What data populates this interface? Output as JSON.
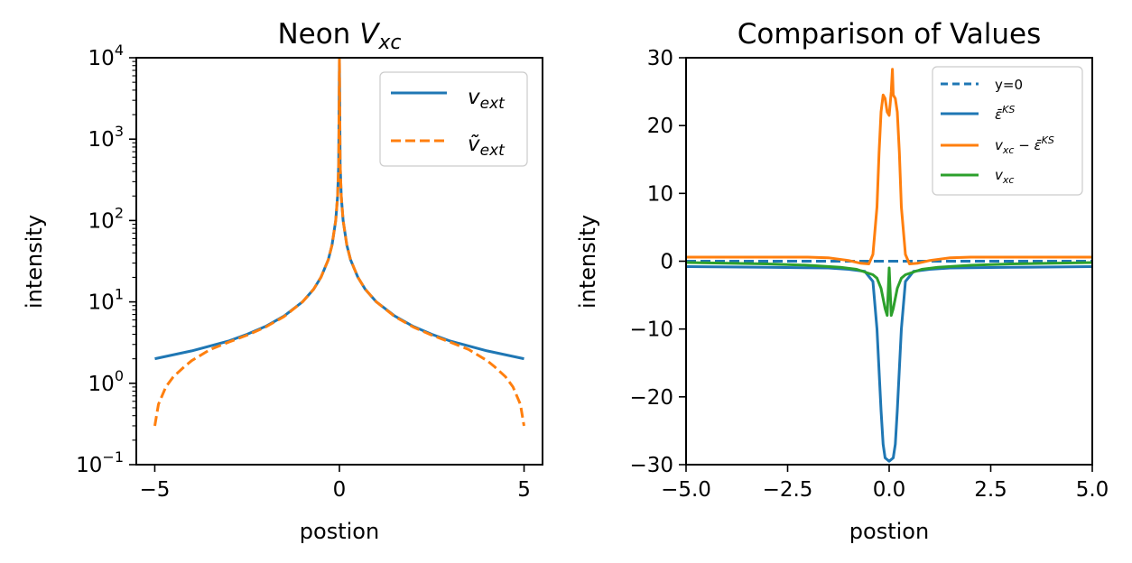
{
  "chart_data": [
    {
      "type": "line",
      "title": "Neon V_xc",
      "title_parts": {
        "text": "Neon ",
        "math": "V",
        "sub": "xc"
      },
      "xlabel": "postion",
      "ylabel": "intensity",
      "xlim": [
        -5.5,
        5.5
      ],
      "ylim": [
        0.1,
        10000
      ],
      "yscale": "log",
      "x_ticks": [
        -5,
        0,
        5
      ],
      "x_tick_labels": [
        "−5",
        "0",
        "5"
      ],
      "y_tick_base": "10",
      "y_tick_exponents": [
        "−1",
        "0",
        "1",
        "2",
        "3",
        "4"
      ],
      "grid": false,
      "legend_position": "upper right",
      "series": [
        {
          "name": "v_ext",
          "legend_math": "v",
          "legend_sub": "ext",
          "color": "#1f77b4",
          "style": "solid",
          "x": [
            -5,
            -4,
            -3,
            -2.5,
            -2,
            -1.5,
            -1,
            -0.7,
            -0.5,
            -0.3,
            -0.2,
            -0.1,
            -0.05,
            -0.02,
            0,
            0.02,
            0.05,
            0.1,
            0.2,
            0.3,
            0.5,
            0.7,
            1,
            1.5,
            2,
            2.5,
            3,
            4,
            5
          ],
          "y": [
            2,
            2.5,
            3.3,
            4,
            5,
            6.7,
            10,
            14.3,
            20,
            33,
            50,
            100,
            200,
            500,
            10000,
            500,
            200,
            100,
            50,
            33,
            20,
            14.3,
            10,
            6.7,
            5,
            4,
            3.3,
            2.5,
            2
          ]
        },
        {
          "name": "ṽ_ext",
          "legend_math": "ṽ",
          "legend_sub": "ext",
          "color": "#ff7f0e",
          "style": "dashed",
          "x": [
            -5,
            -4.9,
            -4.7,
            -4.5,
            -4.2,
            -4,
            -3.5,
            -3,
            -2.5,
            -2,
            -1.5,
            -1,
            -0.7,
            -0.5,
            -0.3,
            -0.2,
            -0.1,
            -0.05,
            -0.02,
            0,
            0.02,
            0.05,
            0.1,
            0.2,
            0.3,
            0.5,
            0.7,
            1,
            1.5,
            2,
            2.5,
            3,
            3.5,
            4,
            4.2,
            4.5,
            4.7,
            4.9,
            5
          ],
          "y": [
            0.3,
            0.55,
            0.9,
            1.2,
            1.6,
            1.9,
            2.6,
            3.2,
            3.9,
            4.9,
            6.6,
            10,
            14.3,
            20,
            33,
            50,
            100,
            200,
            500,
            10000,
            500,
            200,
            100,
            50,
            33,
            20,
            14.3,
            10,
            6.6,
            4.9,
            3.9,
            3.2,
            2.6,
            1.9,
            1.6,
            1.2,
            0.9,
            0.55,
            0.3
          ]
        }
      ]
    },
    {
      "type": "line",
      "title": "Comparison of Values",
      "xlabel": "postion",
      "ylabel": "intensity",
      "xlim": [
        -5.0,
        5.0
      ],
      "ylim": [
        -30,
        30
      ],
      "x_ticks": [
        -5,
        -2.5,
        0,
        2.5,
        5
      ],
      "x_tick_labels": [
        "−5.0",
        "−2.5",
        "0.0",
        "2.5",
        "5.0"
      ],
      "y_ticks": [
        -30,
        -20,
        -10,
        0,
        10,
        20,
        30
      ],
      "y_tick_labels": [
        "−30",
        "−20",
        "−10",
        "0",
        "10",
        "20",
        "30"
      ],
      "grid": false,
      "legend_position": "upper right",
      "series": [
        {
          "name": "y=0",
          "legend_plain": "y=0",
          "color": "#1f77b4",
          "style": "dashed",
          "x": [
            -5,
            5
          ],
          "y": [
            0,
            0
          ]
        },
        {
          "name": "ε̄^KS",
          "legend_math": "ε̄",
          "legend_sup": "KS",
          "color": "#1f77b4",
          "style": "solid",
          "x": [
            -5,
            -3,
            -1.5,
            -1,
            -0.6,
            -0.4,
            -0.3,
            -0.2,
            -0.15,
            -0.1,
            0,
            0.1,
            0.15,
            0.2,
            0.3,
            0.4,
            0.6,
            1,
            1.5,
            3,
            5
          ],
          "y": [
            -0.8,
            -0.9,
            -1.0,
            -1.2,
            -1.5,
            -3,
            -10,
            -22,
            -27,
            -29,
            -29.5,
            -29,
            -27,
            -22,
            -10,
            -3,
            -1.5,
            -1.2,
            -1.0,
            -0.9,
            -0.8
          ]
        },
        {
          "name": "v_xc − ε̄^KS",
          "legend_math": "v",
          "legend_sub": "xc",
          "legend_rest": " − ε̄",
          "legend_sup": "KS",
          "color": "#ff7f0e",
          "style": "solid",
          "x": [
            -5,
            -2,
            -1.5,
            -1,
            -0.7,
            -0.5,
            -0.4,
            -0.3,
            -0.25,
            -0.2,
            -0.15,
            -0.1,
            -0.05,
            0,
            0.05,
            0.08,
            0.1,
            0.15,
            0.2,
            0.25,
            0.3,
            0.4,
            0.5,
            0.7,
            1,
            1.5,
            2,
            5
          ],
          "y": [
            0.6,
            0.6,
            0.5,
            0.1,
            -0.3,
            -0.4,
            1,
            8,
            16,
            22,
            24.5,
            24,
            22,
            21.5,
            25,
            28.3,
            24.5,
            24,
            22,
            16,
            8,
            1,
            -0.4,
            -0.3,
            0.1,
            0.5,
            0.6,
            0.6
          ]
        },
        {
          "name": "v_xc",
          "legend_math": "v",
          "legend_sub": "xc",
          "color": "#2ca02c",
          "style": "solid",
          "x": [
            -5,
            -3,
            -2,
            -1.2,
            -0.8,
            -0.6,
            -0.4,
            -0.3,
            -0.2,
            -0.1,
            -0.05,
            0,
            0.05,
            0.1,
            0.2,
            0.3,
            0.4,
            0.6,
            0.8,
            1.2,
            2,
            3,
            5
          ],
          "y": [
            -0.2,
            -0.4,
            -0.6,
            -0.9,
            -1.2,
            -1.6,
            -2,
            -2.5,
            -4,
            -7,
            -8,
            -1,
            -8,
            -7,
            -4,
            -2.5,
            -2,
            -1.6,
            -1.2,
            -0.9,
            -0.6,
            -0.4,
            -0.2
          ]
        }
      ]
    }
  ]
}
